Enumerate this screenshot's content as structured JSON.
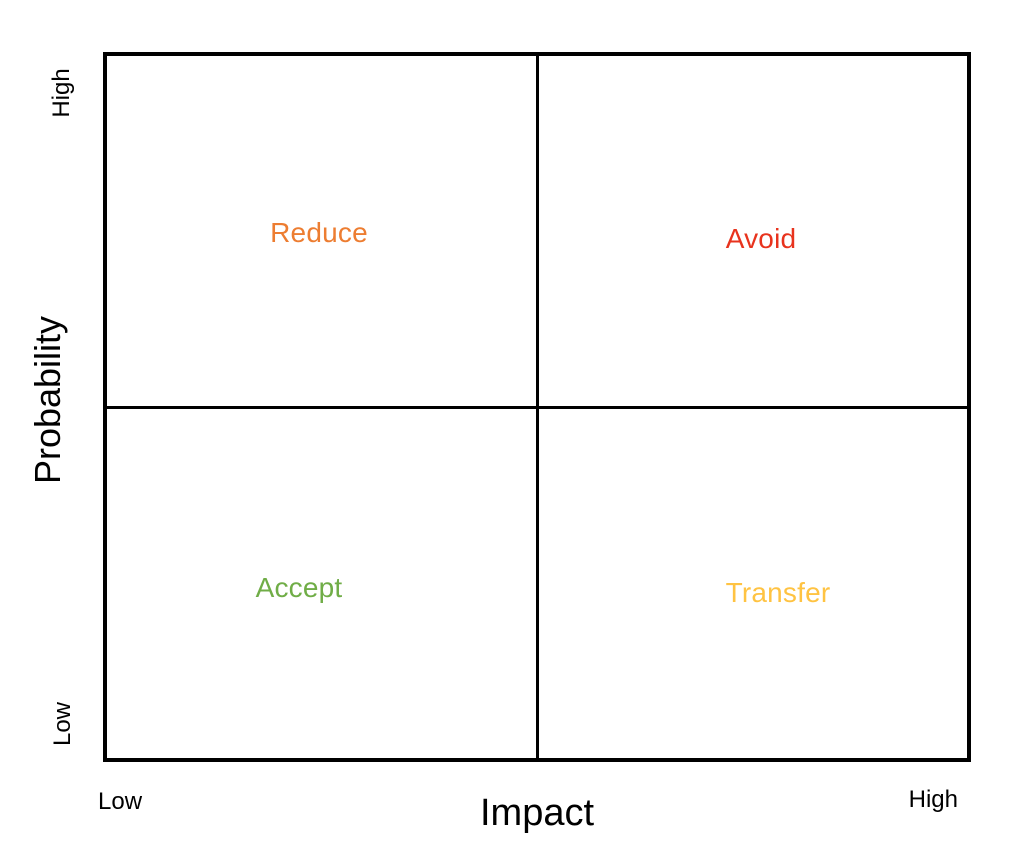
{
  "matrix": {
    "title_semantic": "Risk response quadrant matrix",
    "x_axis": {
      "title": "Impact",
      "low_label": "Low",
      "high_label": "High"
    },
    "y_axis": {
      "title": "Probability",
      "low_label": "Low",
      "high_label": "High"
    },
    "quadrants": {
      "top_left": {
        "label": "Reduce",
        "color": "#ED7D31",
        "position": "high probability / low impact"
      },
      "top_right": {
        "label": "Avoid",
        "color": "#E8331D",
        "position": "high probability / high impact"
      },
      "bottom_left": {
        "label": "Accept",
        "color": "#70AD47",
        "position": "low probability / low impact"
      },
      "bottom_right": {
        "label": "Transfer",
        "color": "#FFC342",
        "position": "low probability / high impact"
      }
    },
    "colors": {
      "border": "#000000",
      "background": "#FFFFFF",
      "axis_text": "#000000"
    }
  }
}
